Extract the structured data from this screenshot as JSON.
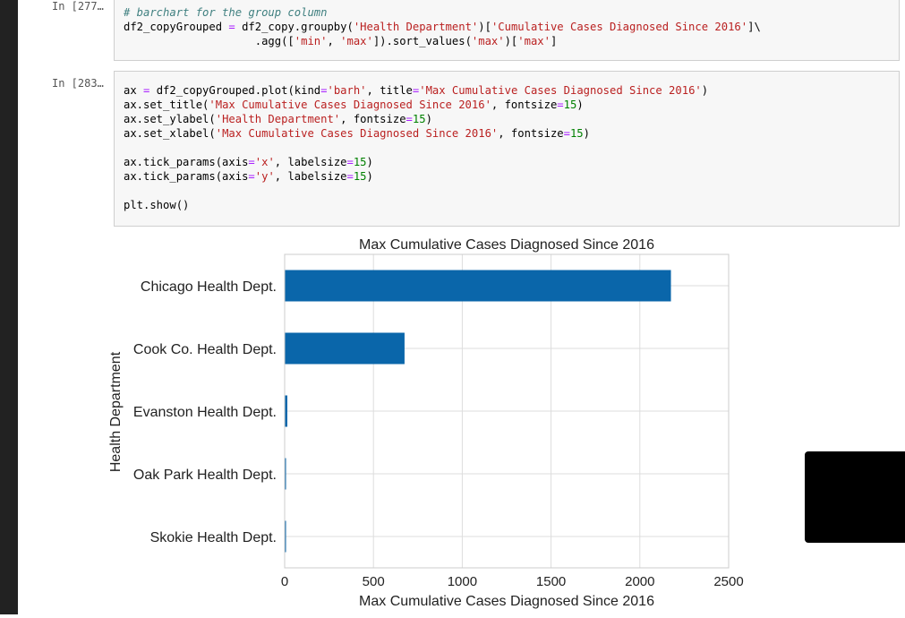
{
  "cells": [
    {
      "prompt": "In [277…",
      "lines": [
        [
          {
            "t": "# barchart for the group column",
            "c": "cm"
          }
        ],
        [
          {
            "t": "df2_copyGrouped "
          },
          {
            "t": "=",
            "c": "op"
          },
          {
            "t": " df2_copy.groupby("
          },
          {
            "t": "'Health Department'",
            "c": "str"
          },
          {
            "t": ")["
          },
          {
            "t": "'Cumulative Cases Diagnosed Since 2016'",
            "c": "str"
          },
          {
            "t": "]\\"
          }
        ],
        [
          {
            "t": "                    .agg(["
          },
          {
            "t": "'min'",
            "c": "str"
          },
          {
            "t": ", "
          },
          {
            "t": "'max'",
            "c": "str"
          },
          {
            "t": "]).sort_values("
          },
          {
            "t": "'max'",
            "c": "str"
          },
          {
            "t": ")["
          },
          {
            "t": "'max'",
            "c": "str"
          },
          {
            "t": "]"
          }
        ]
      ]
    },
    {
      "prompt": "In [283…",
      "lines": [
        [
          {
            "t": "ax "
          },
          {
            "t": "=",
            "c": "op"
          },
          {
            "t": " df2_copyGrouped.plot(kind"
          },
          {
            "t": "=",
            "c": "op"
          },
          {
            "t": "'barh'",
            "c": "str"
          },
          {
            "t": ", title"
          },
          {
            "t": "=",
            "c": "op"
          },
          {
            "t": "'Max Cumulative Cases Diagnosed Since 2016'",
            "c": "str"
          },
          {
            "t": ")"
          }
        ],
        [
          {
            "t": "ax.set_title("
          },
          {
            "t": "'Max Cumulative Cases Diagnosed Since 2016'",
            "c": "str"
          },
          {
            "t": ", fontsize"
          },
          {
            "t": "=",
            "c": "op"
          },
          {
            "t": "15",
            "c": "num"
          },
          {
            "t": ")"
          }
        ],
        [
          {
            "t": "ax.set_ylabel("
          },
          {
            "t": "'Health Department'",
            "c": "str"
          },
          {
            "t": ", fontsize"
          },
          {
            "t": "=",
            "c": "op"
          },
          {
            "t": "15",
            "c": "num"
          },
          {
            "t": ")"
          }
        ],
        [
          {
            "t": "ax.set_xlabel("
          },
          {
            "t": "'Max Cumulative Cases Diagnosed Since 2016'",
            "c": "str"
          },
          {
            "t": ", fontsize"
          },
          {
            "t": "=",
            "c": "op"
          },
          {
            "t": "15",
            "c": "num"
          },
          {
            "t": ")"
          }
        ],
        [],
        [
          {
            "t": "ax.tick_params(axis"
          },
          {
            "t": "=",
            "c": "op"
          },
          {
            "t": "'x'",
            "c": "str"
          },
          {
            "t": ", labelsize"
          },
          {
            "t": "=",
            "c": "op"
          },
          {
            "t": "15",
            "c": "num"
          },
          {
            "t": ")"
          }
        ],
        [
          {
            "t": "ax.tick_params(axis"
          },
          {
            "t": "=",
            "c": "op"
          },
          {
            "t": "'y'",
            "c": "str"
          },
          {
            "t": ", labelsize"
          },
          {
            "t": "=",
            "c": "op"
          },
          {
            "t": "15",
            "c": "num"
          },
          {
            "t": ")"
          }
        ],
        [],
        [
          {
            "t": "plt.show()"
          }
        ]
      ]
    }
  ],
  "chart_data": {
    "type": "bar",
    "orientation": "horizontal",
    "title": "Max Cumulative Cases Diagnosed Since 2016",
    "xlabel": "Max Cumulative Cases Diagnosed Since 2016",
    "ylabel": "Health Department",
    "categories": [
      "Chicago Health Dept.",
      "Cook Co. Health Dept.",
      "Evanston Health Dept.",
      "Oak Park Health Dept.",
      "Skokie Health Dept."
    ],
    "values": [
      2175,
      675,
      15,
      5,
      5
    ],
    "xlim": [
      0,
      2500
    ],
    "xticks": [
      "0",
      "500",
      "1000",
      "1500",
      "2000",
      "2500"
    ],
    "grid": true,
    "bar_color": "#0a66aa"
  }
}
